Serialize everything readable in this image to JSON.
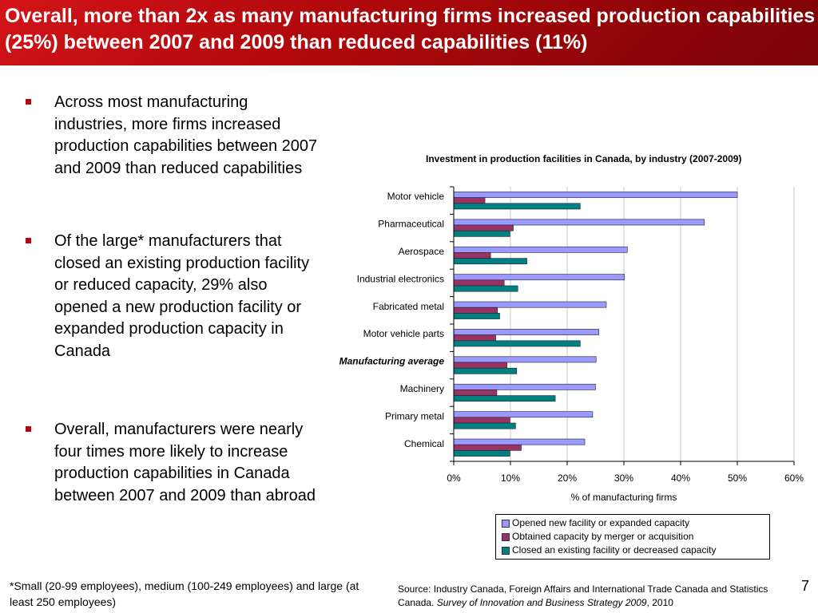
{
  "slide": {
    "title": "Overall, more than 2x as many manufacturing firms increased production capabilities (25%) between 2007 and 2009 than reduced capabilities (11%)",
    "page_number": "7"
  },
  "bullets": [
    "Across most manufacturing industries, more firms increased production capabilities between 2007 and 2009 than reduced capabilities",
    "Of the large* manufacturers that closed an existing production facility or reduced capacity, 29% also opened a new production facility or expanded production capacity in Canada",
    "Overall, manufacturers were nearly four times more likely to increase production capabilities in Canada between 2007 and 2009 than abroad"
  ],
  "footnote": "*Small (20-99 employees), medium (100-249 employees) and large (at least 250 employees)",
  "source": {
    "prefix": "Source: Industry Canada, Foreign Affairs and International Trade Canada and Statistics Canada. ",
    "italic": "Survey of Innovation and Business Strategy 2009",
    "suffix": ", 2010"
  },
  "chart_data": {
    "type": "bar",
    "orientation": "horizontal",
    "title": "Investment in production facilities in Canada, by industry (2007-2009)",
    "xlabel": "% of manufacturing firms",
    "ylabel": "",
    "xlim": [
      0,
      60
    ],
    "x_ticks": [
      "0%",
      "10%",
      "20%",
      "30%",
      "40%",
      "50%",
      "60%"
    ],
    "grid": "vertical",
    "legend_position": "bottom-right",
    "categories": [
      "Motor vehicle",
      "Pharmaceutical",
      "Aerospace",
      "Industrial electronics",
      "Fabricated metal",
      "Motor vehicle parts",
      "Manufacturing average",
      "Machinery",
      "Primary metal",
      "Chemical"
    ],
    "highlight_category": "Manufacturing average",
    "series": [
      {
        "name": "Opened new facility or expanded capacity",
        "color": "#9999ff",
        "values": [
          50,
          44.2,
          30.6,
          30.1,
          26.9,
          25.6,
          25.1,
          25.0,
          24.5,
          23.1
        ]
      },
      {
        "name": "Obtained capacity by merger or acquisition",
        "color": "#993366",
        "values": [
          5.5,
          10.5,
          6.5,
          8.9,
          7.7,
          7.4,
          9.4,
          7.6,
          9.9,
          11.9
        ]
      },
      {
        "name": "Closed an existing facility or decreased capacity",
        "color": "#008080",
        "values": [
          22.3,
          9.9,
          12.9,
          11.3,
          8.1,
          22.3,
          11.1,
          17.9,
          10.9,
          9.9
        ]
      }
    ]
  }
}
